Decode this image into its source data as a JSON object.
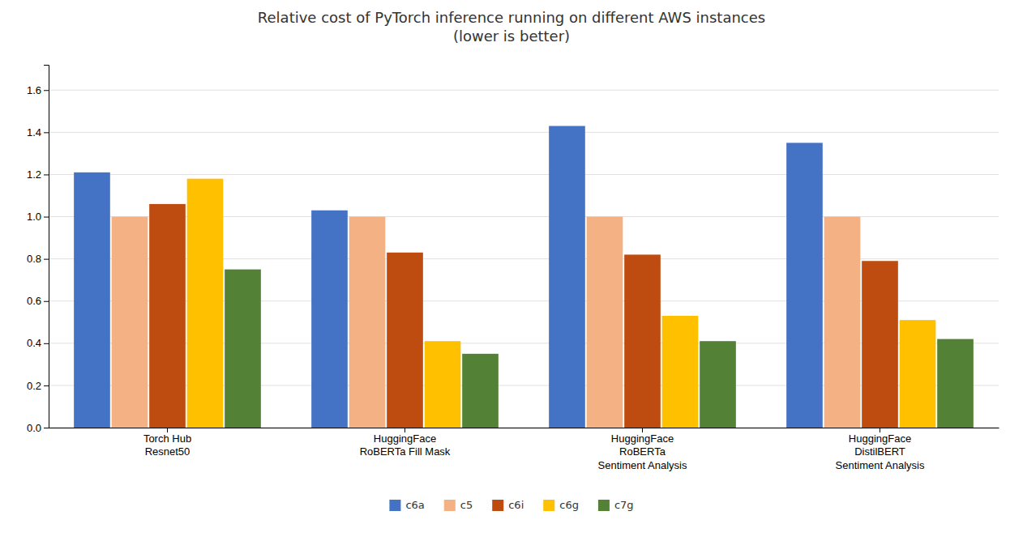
{
  "chart_data": {
    "type": "bar",
    "title": "Relative cost of PyTorch inference running on different AWS instances\n(lower is better)",
    "categories": [
      "Torch Hub\nResnet50",
      "HuggingFace\nRoBERTa Fill Mask",
      "HuggingFace\nRoBERTa\nSentiment Analysis",
      "HuggingFace\nDistilBERT\nSentiment Analysis"
    ],
    "series": [
      {
        "name": "c6a",
        "color": "#4472C4",
        "values": [
          1.21,
          1.03,
          1.43,
          1.35
        ]
      },
      {
        "name": "c5",
        "color": "#F4B183",
        "values": [
          1.0,
          1.0,
          1.0,
          1.0
        ]
      },
      {
        "name": "c6i",
        "color": "#BE4B0F",
        "values": [
          1.06,
          0.83,
          0.82,
          0.79
        ]
      },
      {
        "name": "c6g",
        "color": "#FFC000",
        "values": [
          1.18,
          0.41,
          0.53,
          0.51
        ]
      },
      {
        "name": "c7g",
        "color": "#538135",
        "values": [
          0.75,
          0.35,
          0.41,
          0.42
        ]
      }
    ],
    "ylim": [
      0,
      1.72
    ],
    "yticks": [
      {
        "value": 0,
        "label": "0.0"
      },
      0.2,
      0.4,
      0.6,
      0.8,
      {
        "value": 1.0,
        "label": "1.0"
      },
      1.2,
      1.4,
      1.6
    ],
    "grid": true,
    "legend": "bottom"
  }
}
